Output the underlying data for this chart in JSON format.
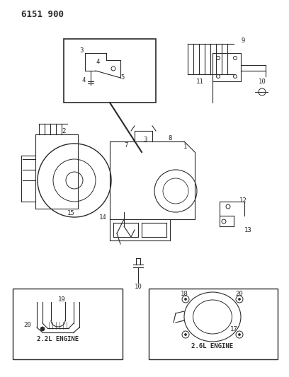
{
  "title": "6151 900",
  "bg_color": "#ffffff",
  "line_color": "#2a2a2a",
  "figsize": [
    4.08,
    5.33
  ],
  "dpi": 100
}
